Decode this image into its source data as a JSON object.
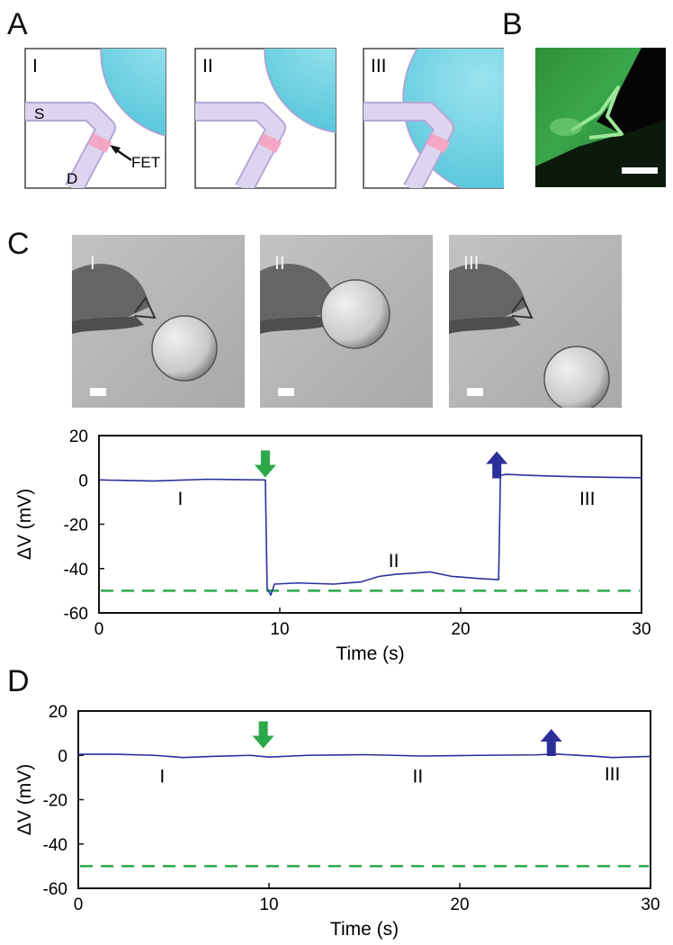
{
  "panel_letters": {
    "a": "A",
    "b": "B",
    "c": "C",
    "d": "D"
  },
  "schematic": {
    "frames": [
      "I",
      "II",
      "III"
    ],
    "source_label": "S",
    "drain_label": "D",
    "fet_label": "FET",
    "colors": {
      "cell": "#6ccfe0",
      "wire": "#d9d0ec",
      "fet": "#f4a6c4",
      "frame": "#444444"
    }
  },
  "fluorescence": {
    "color": "#2fa84a"
  },
  "micrographs": {
    "labels": [
      "I",
      "II",
      "III"
    ]
  },
  "chart_data": [
    {
      "type": "line",
      "panel": "C",
      "xlabel": "Time (s)",
      "ylabel": "ΔV (mV)",
      "xlim": [
        0,
        30
      ],
      "ylim": [
        -60,
        20
      ],
      "xticks": [
        0,
        10,
        20,
        30
      ],
      "yticks": [
        20,
        0,
        -20,
        -40,
        -60
      ],
      "series_color": "#2b2f9a",
      "series": [
        {
          "x": [
            0,
            3,
            6,
            9.2,
            9.3,
            9.5,
            9.7,
            11,
            13,
            14.5,
            15.5,
            16.5,
            17.5,
            18.3,
            19.5,
            21,
            22.1,
            22.2,
            22.5,
            24,
            26,
            28,
            30
          ],
          "y": [
            0,
            -0.5,
            0.3,
            0,
            -49,
            -52,
            -47,
            -46.5,
            -47,
            -46,
            -43.5,
            -42.5,
            -42,
            -41.5,
            -43.5,
            -44.5,
            -45,
            2,
            2.5,
            2,
            1.5,
            1.2,
            1
          ]
        }
      ],
      "reference_line": {
        "y": -50,
        "color": "#2ca84a"
      },
      "arrows": [
        {
          "x": 9.2,
          "y": 6,
          "direction": "down",
          "color": "#2ca84a"
        },
        {
          "x": 22,
          "y": 8,
          "direction": "up",
          "color": "#2b2f9a"
        }
      ],
      "annotations": [
        {
          "text": "I",
          "x": 4.5,
          "y": -8
        },
        {
          "text": "II",
          "x": 16.3,
          "y": -36
        },
        {
          "text": "III",
          "x": 27,
          "y": -8
        }
      ]
    },
    {
      "type": "line",
      "panel": "D",
      "xlabel": "Time (s)",
      "ylabel": "ΔV (mV)",
      "xlim": [
        0,
        30
      ],
      "ylim": [
        -60,
        20
      ],
      "xticks": [
        0,
        10,
        20,
        30
      ],
      "yticks": [
        20,
        0,
        -20,
        -40,
        -60
      ],
      "series_color": "#2b2f9a",
      "series": [
        {
          "x": [
            0,
            2,
            4,
            5.5,
            7,
            9,
            10,
            12,
            15,
            18,
            21,
            24,
            25,
            27,
            28,
            30
          ],
          "y": [
            0.5,
            0.5,
            0,
            -1,
            -0.5,
            0,
            -0.8,
            0,
            0.3,
            -0.3,
            0,
            0.2,
            0.6,
            -0.4,
            -1,
            -0.5
          ]
        }
      ],
      "reference_line": {
        "y": -50,
        "color": "#2ca84a"
      },
      "arrows": [
        {
          "x": 9.7,
          "y": 8,
          "direction": "down",
          "color": "#2ca84a"
        },
        {
          "x": 24.8,
          "y": 7,
          "direction": "up",
          "color": "#2b2f9a"
        }
      ],
      "annotations": [
        {
          "text": "I",
          "x": 4.4,
          "y": -9
        },
        {
          "text": "II",
          "x": 17.8,
          "y": -9
        },
        {
          "text": "III",
          "x": 28,
          "y": -8
        }
      ]
    }
  ]
}
